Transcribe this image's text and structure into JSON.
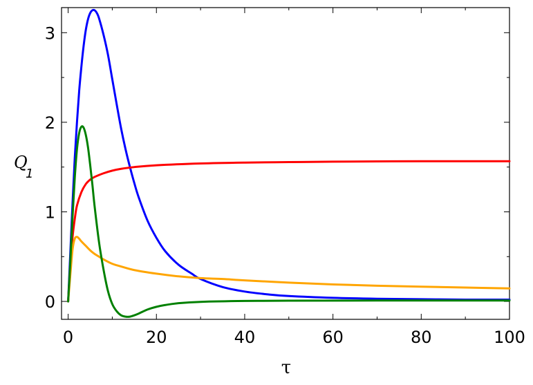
{
  "chart_data": {
    "type": "line",
    "title": "",
    "xlabel": "τ",
    "ylabel": {
      "main": "Q",
      "sub": "1"
    },
    "xlim": [
      -1.5,
      100
    ],
    "ylim": [
      -0.2,
      3.28
    ],
    "x_ticks": [
      0,
      20,
      40,
      60,
      80,
      100
    ],
    "x_tick_labels": [
      "0",
      "20",
      "40",
      "60",
      "80",
      "100"
    ],
    "y_ticks": [
      0,
      1,
      2,
      3
    ],
    "y_tick_labels": [
      "0",
      "1",
      "2",
      "3"
    ],
    "x_minor_step": 10,
    "y_minor_step": 0.5,
    "grid": false,
    "legend": "none",
    "series": [
      {
        "color": "#0000ff",
        "points": [
          [
            0,
            0
          ],
          [
            0.5,
            0.55
          ],
          [
            1,
            1.1
          ],
          [
            1.5,
            1.6
          ],
          [
            2,
            2.0
          ],
          [
            2.5,
            2.35
          ],
          [
            3,
            2.62
          ],
          [
            3.5,
            2.85
          ],
          [
            4,
            3.03
          ],
          [
            4.5,
            3.15
          ],
          [
            5,
            3.22
          ],
          [
            5.5,
            3.25
          ],
          [
            6,
            3.25
          ],
          [
            6.5,
            3.22
          ],
          [
            7,
            3.16
          ],
          [
            8,
            2.98
          ],
          [
            9,
            2.76
          ],
          [
            10,
            2.48
          ],
          [
            11,
            2.2
          ],
          [
            12,
            1.93
          ],
          [
            13,
            1.7
          ],
          [
            14,
            1.5
          ],
          [
            15,
            1.32
          ],
          [
            16,
            1.16
          ],
          [
            18,
            0.9
          ],
          [
            20,
            0.71
          ],
          [
            22,
            0.56
          ],
          [
            25,
            0.41
          ],
          [
            28,
            0.31
          ],
          [
            30,
            0.25
          ],
          [
            35,
            0.16
          ],
          [
            40,
            0.11
          ],
          [
            45,
            0.08
          ],
          [
            50,
            0.06
          ],
          [
            60,
            0.04
          ],
          [
            70,
            0.03
          ],
          [
            80,
            0.025
          ],
          [
            90,
            0.02
          ],
          [
            100,
            0.02
          ]
        ]
      },
      {
        "color": "#ff0000",
        "points": [
          [
            0,
            0
          ],
          [
            0.3,
            0.25
          ],
          [
            0.6,
            0.48
          ],
          [
            1,
            0.72
          ],
          [
            1.5,
            0.92
          ],
          [
            2,
            1.07
          ],
          [
            3,
            1.22
          ],
          [
            4,
            1.31
          ],
          [
            5,
            1.36
          ],
          [
            6,
            1.39
          ],
          [
            8,
            1.43
          ],
          [
            10,
            1.46
          ],
          [
            12,
            1.48
          ],
          [
            15,
            1.5
          ],
          [
            20,
            1.52
          ],
          [
            30,
            1.54
          ],
          [
            40,
            1.55
          ],
          [
            50,
            1.555
          ],
          [
            60,
            1.56
          ],
          [
            80,
            1.565
          ],
          [
            100,
            1.565
          ]
        ]
      },
      {
        "color": "#ffa500",
        "points": [
          [
            0,
            0
          ],
          [
            0.5,
            0.3
          ],
          [
            1,
            0.58
          ],
          [
            1.5,
            0.7
          ],
          [
            2,
            0.72
          ],
          [
            2.5,
            0.7
          ],
          [
            3,
            0.67
          ],
          [
            4,
            0.62
          ],
          [
            5,
            0.57
          ],
          [
            6,
            0.53
          ],
          [
            7,
            0.5
          ],
          [
            8,
            0.47
          ],
          [
            10,
            0.42
          ],
          [
            12,
            0.39
          ],
          [
            15,
            0.35
          ],
          [
            20,
            0.31
          ],
          [
            25,
            0.28
          ],
          [
            30,
            0.26
          ],
          [
            35,
            0.25
          ],
          [
            40,
            0.235
          ],
          [
            50,
            0.21
          ],
          [
            60,
            0.19
          ],
          [
            70,
            0.175
          ],
          [
            80,
            0.165
          ],
          [
            90,
            0.155
          ],
          [
            100,
            0.145
          ]
        ]
      },
      {
        "color": "#008000",
        "points": [
          [
            0,
            0
          ],
          [
            0.5,
            0.45
          ],
          [
            1,
            0.95
          ],
          [
            1.5,
            1.38
          ],
          [
            2,
            1.7
          ],
          [
            2.5,
            1.88
          ],
          [
            3,
            1.95
          ],
          [
            3.5,
            1.94
          ],
          [
            4,
            1.86
          ],
          [
            4.5,
            1.72
          ],
          [
            5,
            1.52
          ],
          [
            5.5,
            1.3
          ],
          [
            6,
            1.06
          ],
          [
            7,
            0.66
          ],
          [
            8,
            0.36
          ],
          [
            9,
            0.12
          ],
          [
            10,
            -0.03
          ],
          [
            11,
            -0.11
          ],
          [
            12,
            -0.155
          ],
          [
            13,
            -0.17
          ],
          [
            14,
            -0.17
          ],
          [
            15,
            -0.155
          ],
          [
            16,
            -0.135
          ],
          [
            18,
            -0.09
          ],
          [
            20,
            -0.06
          ],
          [
            22,
            -0.04
          ],
          [
            25,
            -0.02
          ],
          [
            30,
            -0.005
          ],
          [
            40,
            0.005
          ],
          [
            50,
            0.008
          ],
          [
            70,
            0.01
          ],
          [
            100,
            0.01
          ]
        ]
      }
    ]
  }
}
